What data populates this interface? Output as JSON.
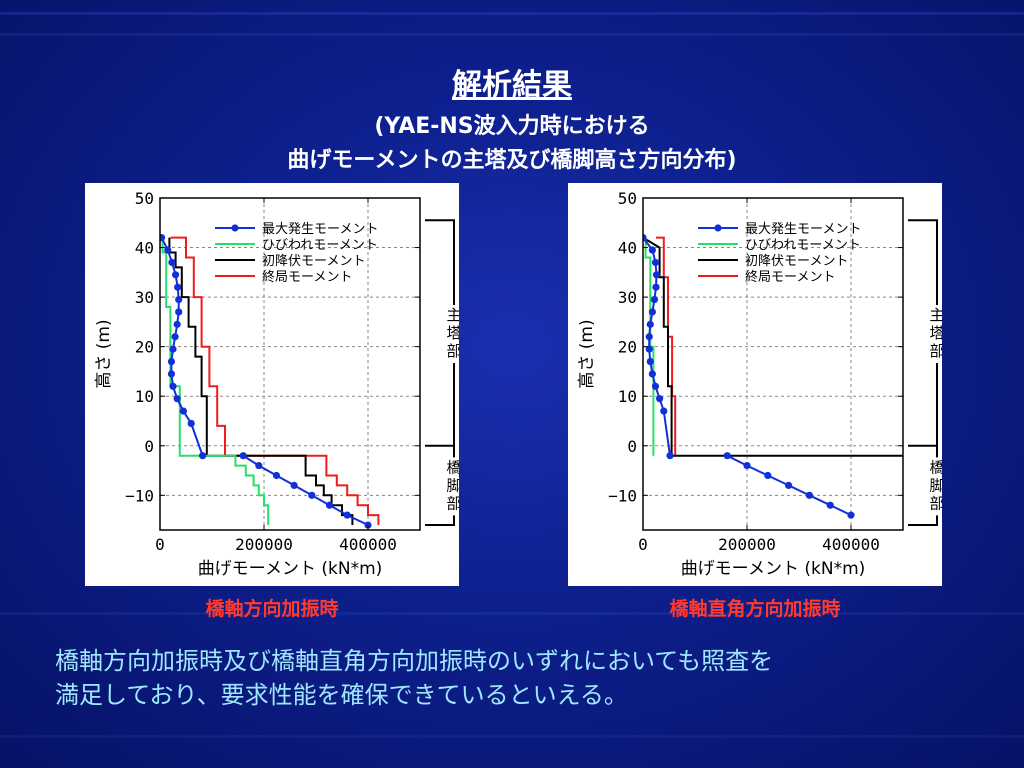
{
  "slide": {
    "title": "解析結果",
    "subtitle_line1": "(YAE-NS波入力時における",
    "subtitle_line2": "曲げモーメントの主塔及び橋脚高さ方向分布)",
    "conclusion_line1": "橋軸方向加振時及び橋軸直角方向加振時のいずれにおいても照査を",
    "conclusion_line2": "満足しており、要求性能を確保できているといえる。"
  },
  "colors": {
    "max_moment": "#1230d8",
    "crack_moment": "#22e06a",
    "initial_yield_moment": "#000000",
    "ultimate_moment": "#ee1c1c",
    "caption": "#ff3b2f",
    "conclusion": "#9fe6ff"
  },
  "chart_data": [
    {
      "type": "line",
      "caption": "橋軸方向加振時",
      "xlabel": "曲げモーメント (kN*m)",
      "ylabel": "高さ (m)",
      "xlim": [
        0,
        500000
      ],
      "ylim": [
        -17,
        50
      ],
      "x_ticks": [
        0,
        200000,
        400000
      ],
      "x_tick_labels": [
        "0",
        "200000",
        "400000"
      ],
      "y_ticks": [
        -10,
        0,
        10,
        20,
        30,
        40,
        50
      ],
      "y_tick_labels": [
        "−10",
        "0",
        "10",
        "20",
        "30",
        "40",
        "50"
      ],
      "grid": true,
      "legend_position": "top-right",
      "region_labels": {
        "upper": "主塔部",
        "lower": "橋脚部"
      },
      "series": [
        {
          "name": "最大発生モーメント",
          "color": "#1230d8",
          "marker": "circle",
          "x": [
            3000,
            15000,
            23000,
            30000,
            34000,
            36000,
            36000,
            33000,
            29000,
            25000,
            22000,
            22000,
            25000,
            33000,
            45000,
            60000,
            82000
          ],
          "y": [
            42,
            39.5,
            37,
            34.5,
            32,
            29.5,
            27,
            24.5,
            22,
            19.5,
            17,
            14.5,
            12,
            9.5,
            7,
            4.5,
            -2
          ],
          "x2": [
            160000,
            190000,
            224000,
            258000,
            292000,
            326000,
            360000,
            400000
          ],
          "y2": [
            -2,
            -4,
            -6,
            -8,
            -10,
            -12,
            -14,
            -16
          ]
        },
        {
          "name": "ひびわれモーメント",
          "color": "#22e06a",
          "x": [
            5000,
            5000,
            12000,
            12000,
            20000,
            20000,
            38000,
            38000,
            145000,
            145000,
            165000,
            165000,
            180000,
            180000,
            190000,
            190000,
            200000,
            200000,
            208000,
            208000
          ],
          "y": [
            42,
            39,
            39,
            28,
            28,
            12,
            12,
            -2,
            -2,
            -4,
            -4,
            -6,
            -6,
            -8,
            -8,
            -10,
            -10,
            -12,
            -12,
            -16
          ],
          "x2": [],
          "y2": []
        },
        {
          "name": "初降伏モーメント",
          "color": "#000000",
          "x": [
            18000,
            18000,
            30000,
            30000,
            42000,
            42000,
            55000,
            55000,
            68000,
            68000,
            80000,
            80000,
            90000,
            90000,
            280000,
            280000,
            300000,
            300000,
            315000,
            315000,
            330000,
            330000,
            350000,
            350000,
            370000,
            370000
          ],
          "y": [
            42,
            39,
            39,
            36,
            36,
            30,
            30,
            24,
            24,
            18,
            18,
            10,
            10,
            -2,
            -2,
            -6,
            -6,
            -8,
            -8,
            -10,
            -10,
            -12,
            -12,
            -14,
            -14,
            -16
          ],
          "x2": [],
          "y2": []
        },
        {
          "name": "終局モーメント",
          "color": "#ee1c1c",
          "x": [
            20000,
            50000,
            50000,
            65000,
            65000,
            80000,
            80000,
            95000,
            95000,
            110000,
            110000,
            125000,
            125000,
            320000,
            320000,
            340000,
            340000,
            360000,
            360000,
            380000,
            380000,
            400000,
            400000,
            420000,
            420000
          ],
          "y": [
            42,
            42,
            38,
            38,
            30,
            30,
            20,
            20,
            12,
            12,
            4,
            4,
            -2,
            -2,
            -6,
            -6,
            -8,
            -8,
            -10,
            -10,
            -12,
            -12,
            -14,
            -14,
            -16
          ],
          "x2": [],
          "y2": []
        }
      ]
    },
    {
      "type": "line",
      "caption": "橋軸直角方向加振時",
      "xlabel": "曲げモーメント (kN*m)",
      "ylabel": "高さ (m)",
      "xlim": [
        0,
        500000
      ],
      "ylim": [
        -17,
        50
      ],
      "x_ticks": [
        0,
        200000,
        400000
      ],
      "x_tick_labels": [
        "0",
        "200000",
        "400000"
      ],
      "y_ticks": [
        -10,
        0,
        10,
        20,
        30,
        40,
        50
      ],
      "y_tick_labels": [
        "−10",
        "0",
        "10",
        "20",
        "30",
        "40",
        "50"
      ],
      "grid": true,
      "legend_position": "top-right",
      "region_labels": {
        "upper": "主塔部",
        "lower": "橋脚部"
      },
      "series": [
        {
          "name": "最大発生モーメント",
          "color": "#1230d8",
          "marker": "circle",
          "x": [
            0,
            18000,
            24000,
            26000,
            25000,
            22000,
            18000,
            14000,
            12000,
            12000,
            14000,
            18000,
            24000,
            32000,
            40000,
            52000
          ],
          "y": [
            42,
            39.5,
            37,
            34.5,
            32,
            29.5,
            27,
            24.5,
            22,
            19.5,
            17,
            14.5,
            12,
            9.5,
            7,
            -2
          ],
          "x2": [
            162000,
            200000,
            240000,
            280000,
            320000,
            360000,
            400000
          ],
          "y2": [
            -2,
            -4,
            -6,
            -8,
            -10,
            -12,
            -14
          ]
        },
        {
          "name": "ひびわれモーメント",
          "color": "#22e06a",
          "x": [
            5000,
            5000,
            14000,
            14000,
            20000,
            20000
          ],
          "y": [
            42,
            38,
            38,
            20,
            20,
            -2
          ],
          "x2": [],
          "y2": []
        },
        {
          "name": "初降伏モーメント",
          "color": "#000000",
          "x": [
            0,
            32000,
            32000,
            40000,
            40000,
            48000,
            48000,
            55000,
            55000,
            500000
          ],
          "y": [
            42,
            40,
            34,
            34,
            24,
            24,
            12,
            12,
            -2,
            -2
          ],
          "x2": [],
          "y2": []
        },
        {
          "name": "終局モーメント",
          "color": "#ee1c1c",
          "x": [
            25000,
            40000,
            40000,
            48000,
            48000,
            56000,
            56000,
            62000,
            62000
          ],
          "y": [
            42,
            42,
            34,
            34,
            22,
            22,
            10,
            10,
            -2
          ],
          "x2": [],
          "y2": []
        }
      ]
    }
  ]
}
